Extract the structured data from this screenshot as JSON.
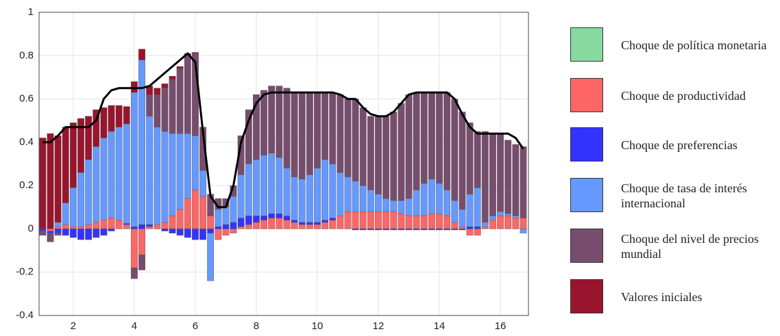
{
  "chart_data": {
    "type": "stacked-bar-line",
    "x": [
      1,
      1.25,
      1.5,
      1.75,
      2,
      2.25,
      2.5,
      2.75,
      3,
      3.25,
      3.5,
      3.75,
      4,
      4.25,
      4.5,
      4.75,
      5,
      5.25,
      5.5,
      5.75,
      6,
      6.25,
      6.5,
      6.75,
      7,
      7.25,
      7.5,
      7.75,
      8,
      8.25,
      8.5,
      8.75,
      9,
      9.25,
      9.5,
      9.75,
      10,
      10.25,
      10.5,
      10.75,
      11,
      11.25,
      11.5,
      11.75,
      12,
      12.25,
      12.5,
      12.75,
      13,
      13.25,
      13.5,
      13.75,
      14,
      14.25,
      14.5,
      14.75,
      15,
      15.25,
      15.5,
      15.75,
      16,
      16.25,
      16.5,
      16.75
    ],
    "series": [
      {
        "name": "Choque de política monetaria",
        "color": "#88d8a0",
        "values": [
          0,
          0,
          0,
          0,
          0,
          0,
          0,
          0,
          0,
          0,
          0,
          0,
          0,
          0,
          0,
          0,
          0,
          0,
          0,
          0,
          0,
          0,
          0,
          0,
          0,
          0,
          0,
          0,
          0,
          0,
          0,
          0,
          0,
          0,
          0,
          0,
          0,
          0,
          0,
          0,
          0,
          0,
          0,
          0,
          0,
          0,
          0,
          0,
          0,
          0,
          0,
          0,
          0,
          0,
          0,
          0,
          0,
          0,
          0,
          0,
          0,
          0,
          0,
          0
        ]
      },
      {
        "name": "Choque de productividad",
        "color": "#ff6666",
        "values": [
          0,
          -0.01,
          0.01,
          0.02,
          0.01,
          0.01,
          0.02,
          0.03,
          0.04,
          0.05,
          0.04,
          0.02,
          -0.18,
          -0.12,
          0.01,
          0.02,
          0.03,
          0.06,
          0.09,
          0.14,
          0.18,
          0.15,
          0.06,
          -0.05,
          -0.03,
          -0.02,
          0.01,
          0.02,
          0.03,
          0.04,
          0.05,
          0.05,
          0.04,
          0.03,
          0.02,
          0.02,
          0.02,
          0.03,
          0.04,
          0.06,
          0.08,
          0.08,
          0.08,
          0.08,
          0.08,
          0.08,
          0.08,
          0.07,
          0.06,
          0.06,
          0.06,
          0.07,
          0.07,
          0.06,
          0.03,
          0.01,
          -0.03,
          -0.03,
          0.01,
          0.04,
          0.06,
          0.06,
          0.05,
          0.05
        ]
      },
      {
        "name": "Choque de preferencias",
        "color": "#3333ff",
        "values": [
          -0.01,
          -0.01,
          -0.02,
          -0.03,
          -0.04,
          -0.05,
          -0.05,
          -0.04,
          -0.03,
          -0.01,
          0,
          0.005,
          0.01,
          0.02,
          0.01,
          0,
          -0.01,
          -0.02,
          -0.03,
          -0.04,
          -0.05,
          -0.05,
          -0.02,
          0.01,
          0.02,
          0.03,
          0.04,
          0.04,
          0.03,
          0.02,
          0.02,
          0.02,
          0.02,
          0.01,
          0.01,
          0.01,
          0.01,
          0.01,
          0.01,
          0,
          0,
          -0.005,
          -0.005,
          -0.005,
          -0.005,
          -0.005,
          -0.005,
          -0.005,
          -0.005,
          -0.005,
          -0.005,
          -0.005,
          -0.005,
          -0.005,
          -0.005,
          -0.005,
          0.01,
          0.01,
          0,
          0,
          0,
          0,
          0,
          0
        ]
      },
      {
        "name": "Choque de tasa de interés internacional",
        "color": "#6699ff",
        "values": [
          0,
          0,
          0.02,
          0.1,
          0.18,
          0.25,
          0.3,
          0.35,
          0.38,
          0.4,
          0.43,
          0.46,
          0.62,
          0.76,
          0.5,
          0.45,
          0.42,
          0.38,
          0.35,
          0.3,
          0.25,
          0.12,
          -0.22,
          0.08,
          0.08,
          0.12,
          0.2,
          0.24,
          0.26,
          0.28,
          0.28,
          0.26,
          0.22,
          0.2,
          0.2,
          0.22,
          0.25,
          0.28,
          0.25,
          0.2,
          0.16,
          0.14,
          0.12,
          0.1,
          0.08,
          0.06,
          0.05,
          0.06,
          0.08,
          0.12,
          0.15,
          0.16,
          0.14,
          0.12,
          0.1,
          0.08,
          0.15,
          0.18,
          0.02,
          0.02,
          0.02,
          0.01,
          0.01,
          -0.02
        ]
      },
      {
        "name": "Choque del nivel de precios mundial",
        "color": "#774d6e",
        "values": [
          -0.02,
          -0.04,
          -0.01,
          0,
          0,
          0,
          0,
          0,
          0,
          0,
          0,
          0,
          -0.05,
          -0.07,
          0.1,
          0.15,
          0.2,
          0.25,
          0.3,
          0.36,
          0.38,
          0.2,
          0.1,
          0.05,
          0.04,
          0.05,
          0.18,
          0.25,
          0.3,
          0.3,
          0.31,
          0.33,
          0.37,
          0.39,
          0.4,
          0.38,
          0.35,
          0.31,
          0.33,
          0.36,
          0.36,
          0.38,
          0.36,
          0.34,
          0.36,
          0.38,
          0.41,
          0.45,
          0.48,
          0.45,
          0.42,
          0.4,
          0.42,
          0.45,
          0.47,
          0.45,
          0.33,
          0.26,
          0.42,
          0.38,
          0.36,
          0.34,
          0.33,
          0.33
        ]
      },
      {
        "name": "Valores iniciales",
        "color": "#99152d",
        "values": [
          0.42,
          0.44,
          0.4,
          0.35,
          0.3,
          0.25,
          0.2,
          0.17,
          0.14,
          0.12,
          0.1,
          0.08,
          0.05,
          0.05,
          0.04,
          0.03,
          0.02,
          0.015,
          0.01,
          0.01,
          0.005,
          0,
          0,
          0,
          0,
          0,
          0,
          0,
          0,
          0,
          0,
          0,
          0,
          0,
          0,
          0,
          0,
          0,
          0,
          0,
          0,
          0,
          0,
          0,
          0,
          0,
          0,
          0,
          0,
          0,
          0,
          0,
          0,
          0,
          0,
          0,
          0,
          0,
          0,
          0,
          0,
          0,
          0,
          0
        ]
      }
    ],
    "line": {
      "color": "#000000",
      "values": [
        0.4,
        0.4,
        0.43,
        0.47,
        0.47,
        0.47,
        0.47,
        0.5,
        0.6,
        0.64,
        0.65,
        0.65,
        0.65,
        0.65,
        0.66,
        0.69,
        0.72,
        0.75,
        0.78,
        0.81,
        0.77,
        0.45,
        0.15,
        0.1,
        0.1,
        0.2,
        0.4,
        0.5,
        0.58,
        0.62,
        0.63,
        0.63,
        0.63,
        0.63,
        0.63,
        0.63,
        0.63,
        0.63,
        0.63,
        0.62,
        0.6,
        0.6,
        0.56,
        0.53,
        0.52,
        0.52,
        0.54,
        0.58,
        0.62,
        0.63,
        0.63,
        0.63,
        0.63,
        0.63,
        0.6,
        0.53,
        0.47,
        0.44,
        0.44,
        0.44,
        0.44,
        0.44,
        0.42,
        0.37
      ]
    },
    "xlim": [
      0.88,
      16.92
    ],
    "xticks": [
      2,
      4,
      6,
      8,
      10,
      12,
      14,
      16
    ],
    "ylim": [
      -0.4,
      1
    ],
    "yticks": [
      -0.4,
      -0.2,
      0,
      0.2,
      0.4,
      0.6,
      0.8,
      1
    ],
    "grid": true
  }
}
